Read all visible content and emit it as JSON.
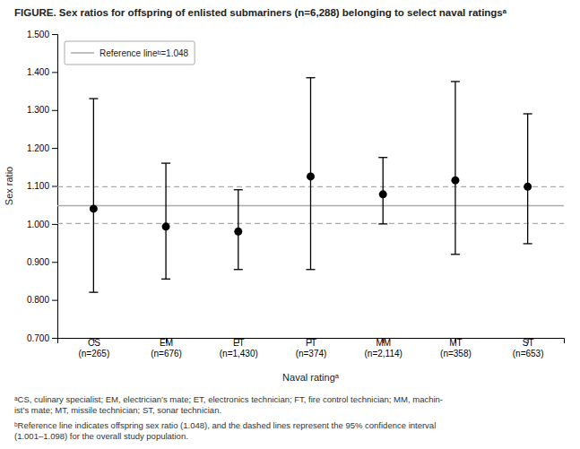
{
  "chart_data": {
    "type": "errorbar",
    "title": "FIGURE. Sex ratios for offspring of enlisted submariners (n=6,288) belonging to select naval ratingsᵃ",
    "categories": [
      "CS\n(n=265)",
      "EM\n(n=676)",
      "ET\n(n=1,430)",
      "FT\n(n=374)",
      "MM\n(n=2,114)",
      "MT\n(n=358)",
      "ST\n(n=653)"
    ],
    "values": [
      1.04,
      0.993,
      0.98,
      1.125,
      1.078,
      1.115,
      1.098
    ],
    "ci_lower": [
      0.82,
      0.855,
      0.88,
      0.88,
      1.0,
      0.92,
      0.948
    ],
    "ci_upper": [
      1.33,
      1.16,
      1.09,
      1.385,
      1.175,
      1.375,
      1.29
    ],
    "color": "#000000",
    "reference_lines": [
      {
        "name": "Reference lineᵇ=1.048",
        "value": 1.048,
        "color": "#aaaaaa",
        "line_style": "solid"
      },
      {
        "value": 1.098,
        "color": "#aaaaaa",
        "line_style": "dashed"
      },
      {
        "value": 1.001,
        "color": "#aaaaaa",
        "line_style": "dashed"
      }
    ],
    "ylim": [
      0.7,
      1.5
    ],
    "yticks": [
      {
        "value": 0.7,
        "label": "0.700"
      },
      {
        "value": 0.8,
        "label": "0.800"
      },
      {
        "value": 0.9,
        "label": "0.900"
      },
      {
        "value": 1.0,
        "label": "1.000"
      },
      {
        "value": 1.1,
        "label": "1.100"
      },
      {
        "value": 1.2,
        "label": "1.200"
      },
      {
        "value": 1.3,
        "label": "1.300"
      },
      {
        "value": 1.4,
        "label": "1.400"
      },
      {
        "value": 1.5,
        "label": "1.500"
      }
    ],
    "ylabel": "Sex ratio",
    "xlabel": "Naval ratingᵃ",
    "grid": false,
    "legend": "upper left",
    "annotations": [
      "ᵃCS, culinary specialist; EM, electrician’s mate; ET, electronics technician; FT, fire control technician; MM, machin-\nist’s mate; MT, missile technician; ST, sonar technician.",
      "ᵇReference line indicates offspring sex ratio (1.048), and the dashed lines represent the 95% confidence interval\n(1.001–1.098) for the overall study population."
    ]
  }
}
